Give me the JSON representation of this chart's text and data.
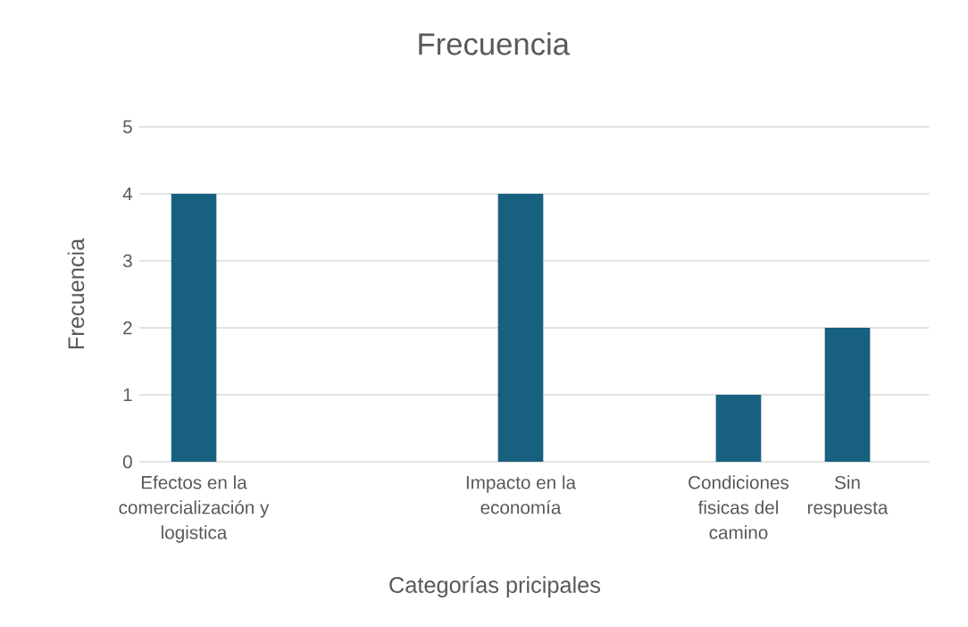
{
  "chart_data": {
    "type": "bar",
    "title": "Frecuencia",
    "xlabel": "Categorías pricipales",
    "ylabel": "Frecuencia",
    "categories": [
      "Efectos en la comercialización y logistica",
      null,
      null,
      "Impacto en la economía",
      null,
      "Condiciones fisicas del camino",
      "Sin respuesta"
    ],
    "values": [
      4,
      null,
      null,
      4,
      null,
      1,
      2
    ],
    "color": "#17607f",
    "ylim": [
      0,
      5
    ],
    "yticks": [
      0,
      1,
      2,
      3,
      4,
      5
    ],
    "grid": "y"
  }
}
